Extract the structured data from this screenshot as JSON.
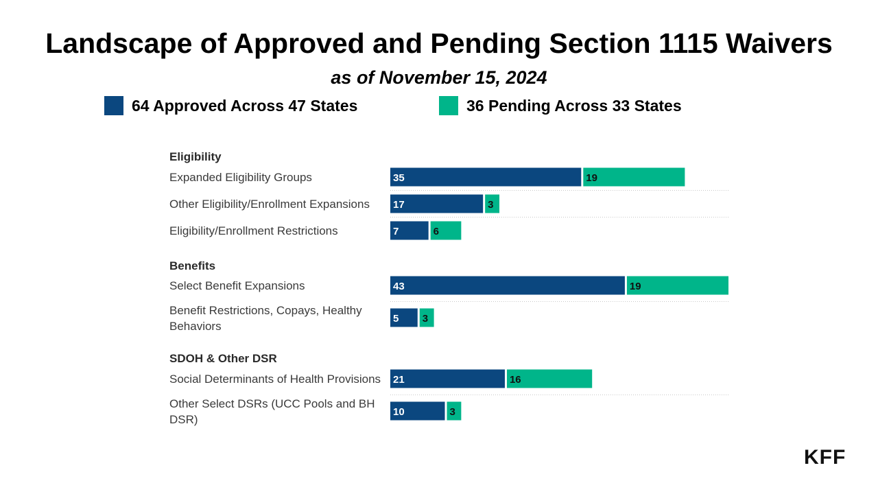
{
  "chart_data": {
    "type": "bar",
    "orientation": "horizontal",
    "stacked": true,
    "title": "Landscape of Approved and Pending Section 1115 Waivers",
    "subtitle": "as of November 15, 2024",
    "legend": [
      {
        "label": "64 Approved Across 47 States",
        "color": "#0b477f"
      },
      {
        "label": "36 Pending Across 33 States",
        "color": "#00b58a"
      }
    ],
    "groups": [
      {
        "name": "Eligibility",
        "rows": [
          {
            "lines": [
              "Expanded Eligibility Groups"
            ],
            "approved": 35,
            "pending": 19
          },
          {
            "lines": [
              "Other Eligibility/Enrollment Expansions"
            ],
            "approved": 17,
            "pending": 3
          },
          {
            "lines": [
              "Eligibility/Enrollment Restrictions"
            ],
            "approved": 7,
            "pending": 6
          }
        ]
      },
      {
        "name": "Benefits",
        "rows": [
          {
            "lines": [
              "Select Benefit Expansions"
            ],
            "approved": 43,
            "pending": 19
          },
          {
            "lines": [
              "Benefit Restrictions, Copays, Healthy",
              "Behaviors"
            ],
            "approved": 5,
            "pending": 3
          }
        ]
      },
      {
        "name": "SDOH & Other DSR",
        "rows": [
          {
            "lines": [
              "Social Determinants of Health Provisions"
            ],
            "approved": 21,
            "pending": 16
          },
          {
            "lines": [
              "Other Select DSRs (UCC Pools and BH",
              "DSR)"
            ],
            "approved": 10,
            "pending": 3
          }
        ]
      }
    ],
    "xlim": [
      0,
      62
    ],
    "xlabel": "",
    "ylabel": "",
    "grid": false
  },
  "logo": "KFF"
}
